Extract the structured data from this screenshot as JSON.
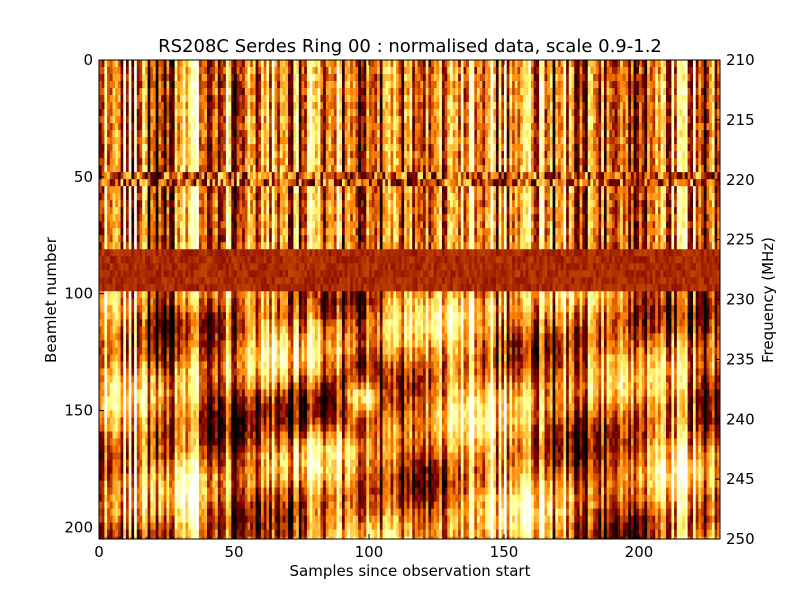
{
  "chart_data": {
    "type": "heatmap",
    "title": "RS208C Serdes Ring 00 : normalised data, scale 0.9-1.2",
    "xlabel": "Samples since observation start",
    "ylabel": "Beamlet number",
    "y2label": "Frequency (MHz)",
    "xlim": [
      0,
      230
    ],
    "ylim": [
      0,
      205
    ],
    "y2lim": [
      210,
      250
    ],
    "y_inverted": true,
    "x_ticks": [
      "0",
      "50",
      "100",
      "150",
      "200"
    ],
    "y_ticks": [
      "0",
      "50",
      "100",
      "150",
      "200"
    ],
    "y2_ticks": [
      "210",
      "215",
      "220",
      "225",
      "230",
      "235",
      "240",
      "245",
      "250"
    ],
    "color_scale": [
      0.9,
      1.2
    ],
    "colormap": "afmhot",
    "grid": false,
    "colors": {
      "low": "#000000",
      "mid": "#b34000",
      "high": "#ffffff"
    }
  }
}
